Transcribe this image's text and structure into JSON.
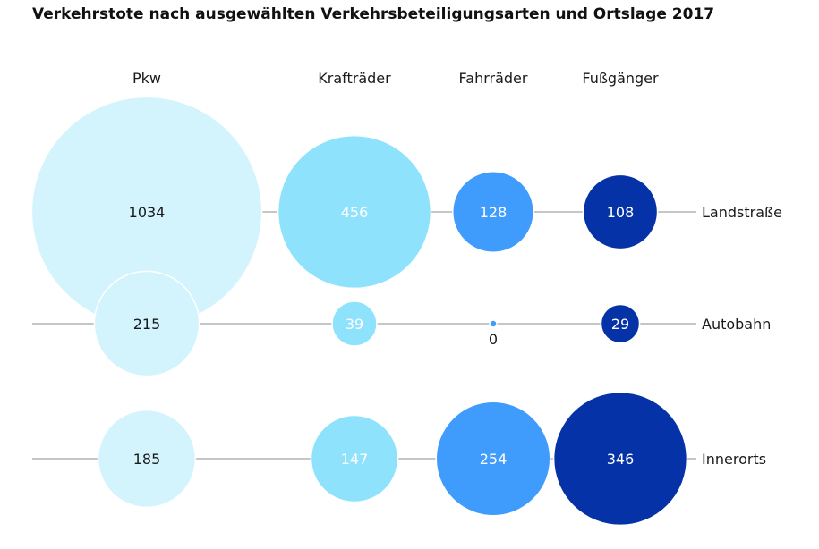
{
  "chart_data": {
    "type": "bubble",
    "title": "Verkehrstote nach ausgewählten Verkehrsbeteiligungsarten und Ortslage 2017",
    "categories": [
      "Pkw",
      "Krafträder",
      "Fahrräder",
      "Fußgänger"
    ],
    "rows": [
      "Landstraße",
      "Autobahn",
      "Innerorts"
    ],
    "values": [
      [
        1034,
        456,
        128,
        108
      ],
      [
        215,
        39,
        0,
        29
      ],
      [
        185,
        147,
        254,
        346
      ]
    ],
    "colors": [
      "#d3f3fd",
      "#8ee2fc",
      "#3f9cfc",
      "#0532a6"
    ],
    "label_colors": [
      "#1a1a1a",
      "#ffffff",
      "#ffffff",
      "#ffffff"
    ],
    "zero_label_color": "#1a1a1a",
    "line_color": "#b3b3b3"
  }
}
